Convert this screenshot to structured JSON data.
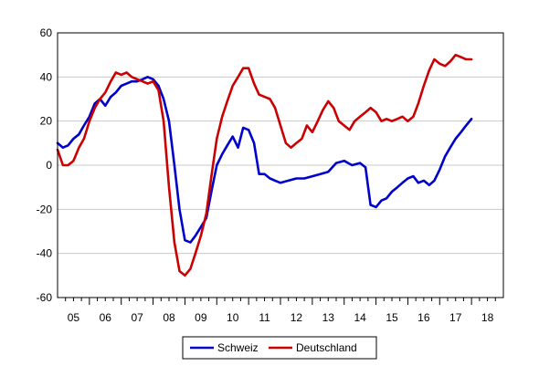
{
  "chart_data": {
    "type": "line",
    "title": "",
    "xlabel": "",
    "ylabel": "",
    "ylim": [
      -60,
      60
    ],
    "yticks": [
      60,
      40,
      20,
      0,
      -20,
      -40,
      -60
    ],
    "xlim": [
      2005.0,
      2019.0
    ],
    "xtick_labels": [
      "05",
      "06",
      "07",
      "08",
      "09",
      "10",
      "11",
      "12",
      "13",
      "14",
      "15",
      "16",
      "17",
      "18"
    ],
    "grid": true,
    "legend_position": "bottom-center",
    "series": [
      {
        "name": "Schweiz",
        "color": "#0000cc",
        "x": [
          2005.0,
          2005.17,
          2005.33,
          2005.5,
          2005.67,
          2005.83,
          2006.0,
          2006.17,
          2006.33,
          2006.5,
          2006.67,
          2006.83,
          2007.0,
          2007.17,
          2007.33,
          2007.5,
          2007.67,
          2007.83,
          2008.0,
          2008.17,
          2008.33,
          2008.5,
          2008.67,
          2008.83,
          2009.0,
          2009.17,
          2009.33,
          2009.5,
          2009.67,
          2009.83,
          2010.0,
          2010.17,
          2010.33,
          2010.5,
          2010.67,
          2010.83,
          2011.0,
          2011.17,
          2011.33,
          2011.5,
          2011.67,
          2011.83,
          2012.0,
          2012.25,
          2012.5,
          2012.75,
          2013.0,
          2013.25,
          2013.5,
          2013.75,
          2014.0,
          2014.25,
          2014.5,
          2014.67,
          2014.83,
          2015.0,
          2015.17,
          2015.33,
          2015.5,
          2015.67,
          2015.83,
          2016.0,
          2016.17,
          2016.33,
          2016.5,
          2016.67,
          2016.83,
          2017.0,
          2017.17,
          2017.33,
          2017.5,
          2017.67,
          2017.83,
          2018.0
        ],
        "y": [
          10,
          8,
          9,
          12,
          14,
          18,
          22,
          28,
          30,
          27,
          31,
          33,
          36,
          37,
          38,
          38,
          39,
          40,
          39,
          36,
          30,
          20,
          0,
          -20,
          -34,
          -35,
          -32,
          -28,
          -24,
          -12,
          0,
          5,
          9,
          13,
          8,
          17,
          16,
          10,
          -4,
          -4,
          -6,
          -7,
          -8,
          -7,
          -6,
          -6,
          -5,
          -4,
          -3,
          1,
          2,
          0,
          1,
          -1,
          -18,
          -19,
          -16,
          -15,
          -12,
          -10,
          -8,
          -6,
          -5,
          -8,
          -7,
          -9,
          -7,
          -2,
          4,
          8,
          12,
          15,
          18,
          21
        ]
      },
      {
        "name": "Deutschland",
        "color": "#cc0000",
        "x": [
          2005.0,
          2005.17,
          2005.33,
          2005.5,
          2005.67,
          2005.83,
          2006.0,
          2006.17,
          2006.33,
          2006.5,
          2006.67,
          2006.83,
          2007.0,
          2007.17,
          2007.33,
          2007.5,
          2007.67,
          2007.83,
          2008.0,
          2008.17,
          2008.33,
          2008.5,
          2008.67,
          2008.83,
          2009.0,
          2009.17,
          2009.33,
          2009.5,
          2009.67,
          2009.83,
          2010.0,
          2010.17,
          2010.33,
          2010.5,
          2010.67,
          2010.83,
          2011.0,
          2011.17,
          2011.33,
          2011.5,
          2011.67,
          2011.83,
          2012.0,
          2012.17,
          2012.33,
          2012.5,
          2012.67,
          2012.83,
          2013.0,
          2013.17,
          2013.33,
          2013.5,
          2013.67,
          2013.83,
          2014.0,
          2014.17,
          2014.33,
          2014.5,
          2014.67,
          2014.83,
          2015.0,
          2015.17,
          2015.33,
          2015.5,
          2015.67,
          2015.83,
          2016.0,
          2016.17,
          2016.33,
          2016.5,
          2016.67,
          2016.83,
          2017.0,
          2017.17,
          2017.33,
          2017.5,
          2017.67,
          2017.83,
          2018.0
        ],
        "y": [
          7,
          0,
          0,
          2,
          8,
          12,
          20,
          26,
          30,
          33,
          38,
          42,
          41,
          42,
          40,
          39,
          38,
          37,
          38,
          34,
          20,
          -10,
          -35,
          -48,
          -50,
          -47,
          -40,
          -32,
          -22,
          -5,
          12,
          22,
          29,
          36,
          40,
          44,
          44,
          37,
          32,
          31,
          30,
          26,
          18,
          10,
          8,
          10,
          12,
          18,
          15,
          20,
          25,
          29,
          26,
          20,
          18,
          16,
          20,
          22,
          24,
          26,
          24,
          20,
          21,
          20,
          21,
          22,
          20,
          22,
          28,
          36,
          43,
          48,
          46,
          45,
          47,
          50,
          49,
          48,
          48
        ]
      }
    ]
  }
}
